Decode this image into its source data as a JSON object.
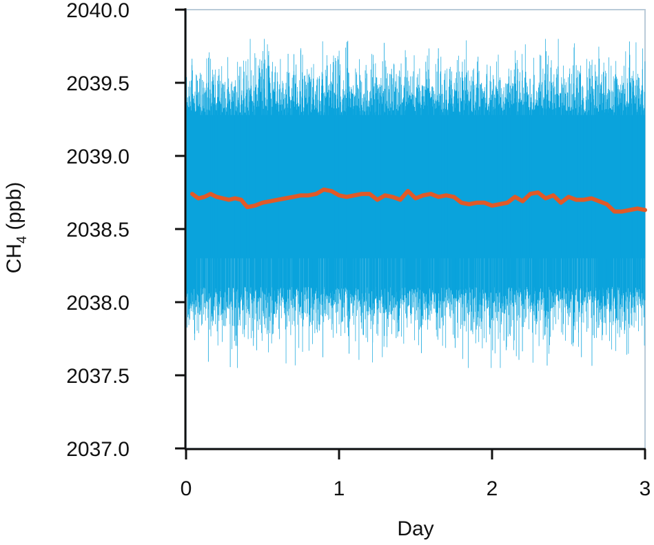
{
  "chart_data": {
    "type": "line",
    "xlabel": "Day",
    "ylabel": {
      "main": "CH",
      "sub": "4",
      "unit": " (ppb)"
    },
    "xlim": [
      0,
      3
    ],
    "ylim": [
      2037.0,
      2040.0
    ],
    "x_ticks": [
      0,
      1,
      2,
      3
    ],
    "x_tick_labels": [
      "0",
      "1",
      "2",
      "3"
    ],
    "y_ticks": [
      2037.0,
      2037.5,
      2038.0,
      2038.5,
      2039.0,
      2039.5,
      2040.0
    ],
    "y_tick_labels": [
      "2037.0",
      "2037.5",
      "2038.0",
      "2038.5",
      "2039.0",
      "2039.5",
      "2040.0"
    ],
    "grid": false,
    "legend": "none",
    "series": [
      {
        "kind": "high-frequency measurements",
        "color": "#0aa3dc",
        "x_range": [
          0,
          3
        ],
        "center": 2038.7,
        "core_band": [
          2038.3,
          2039.28
        ],
        "typical_extremes": [
          2038.0,
          2039.4
        ],
        "max": 2039.8,
        "min": 2037.55
      },
      {
        "kind": "running mean",
        "color": "#e05a28",
        "x": [
          0.04,
          0.08,
          0.12,
          0.16,
          0.2,
          0.24,
          0.28,
          0.32,
          0.36,
          0.4,
          0.45,
          0.5,
          0.55,
          0.6,
          0.65,
          0.7,
          0.75,
          0.8,
          0.85,
          0.9,
          0.95,
          1.0,
          1.05,
          1.1,
          1.15,
          1.2,
          1.25,
          1.3,
          1.35,
          1.4,
          1.45,
          1.5,
          1.55,
          1.6,
          1.65,
          1.7,
          1.75,
          1.8,
          1.85,
          1.9,
          1.95,
          2.0,
          2.05,
          2.1,
          2.15,
          2.2,
          2.25,
          2.3,
          2.35,
          2.4,
          2.45,
          2.5,
          2.55,
          2.6,
          2.65,
          2.7,
          2.75,
          2.8,
          2.85,
          2.9,
          2.95,
          3.0
        ],
        "y": [
          2038.74,
          2038.71,
          2038.72,
          2038.74,
          2038.72,
          2038.71,
          2038.7,
          2038.71,
          2038.7,
          2038.65,
          2038.66,
          2038.68,
          2038.69,
          2038.7,
          2038.71,
          2038.72,
          2038.73,
          2038.73,
          2038.74,
          2038.77,
          2038.76,
          2038.73,
          2038.72,
          2038.73,
          2038.74,
          2038.74,
          2038.7,
          2038.73,
          2038.72,
          2038.7,
          2038.76,
          2038.71,
          2038.73,
          2038.74,
          2038.72,
          2038.73,
          2038.72,
          2038.68,
          2038.67,
          2038.68,
          2038.68,
          2038.66,
          2038.67,
          2038.68,
          2038.72,
          2038.69,
          2038.74,
          2038.75,
          2038.71,
          2038.73,
          2038.68,
          2038.72,
          2038.7,
          2038.7,
          2038.71,
          2038.69,
          2038.67,
          2038.62,
          2038.62,
          2038.63,
          2038.64,
          2038.63
        ]
      }
    ]
  }
}
